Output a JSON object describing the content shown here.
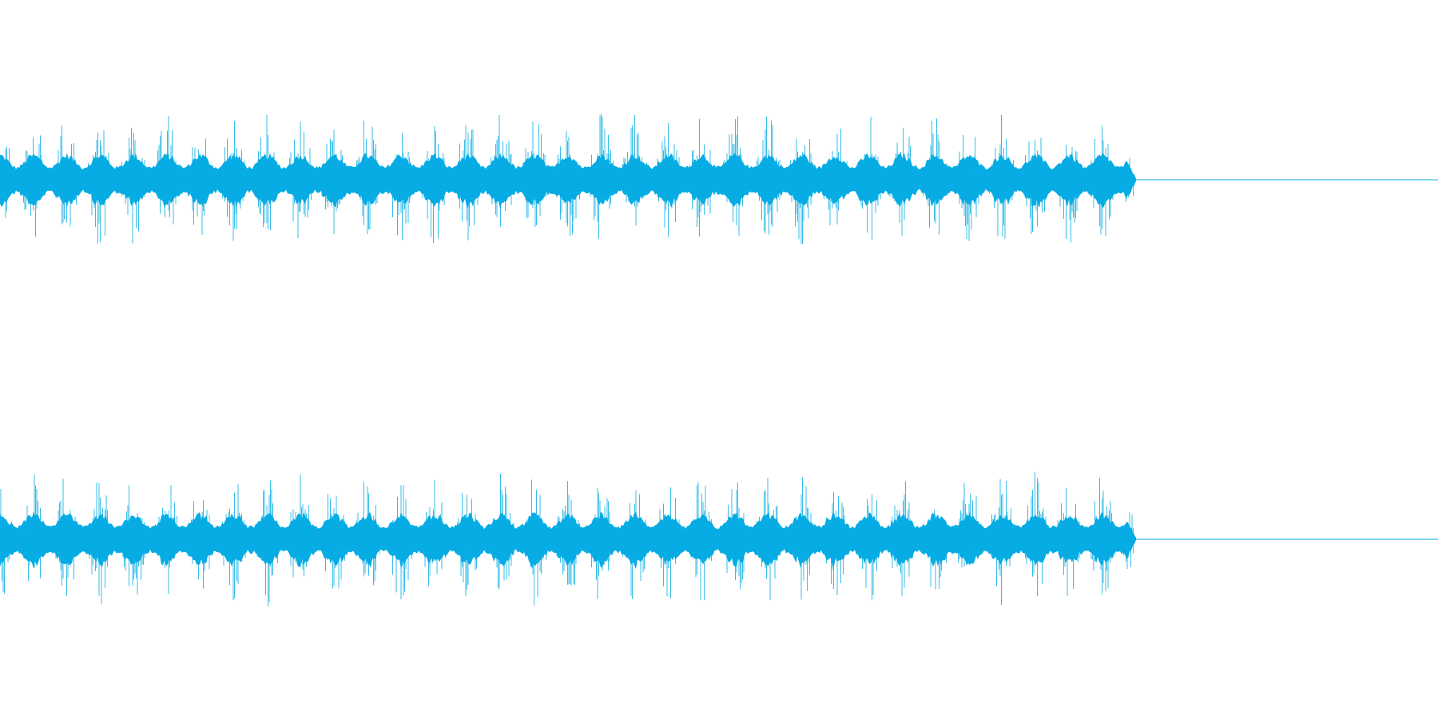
{
  "waveform": {
    "color": "#06ace3",
    "background": "#ffffff",
    "channels": [
      "left",
      "right"
    ],
    "audio_fraction_of_width": 0.79,
    "pulse_count": 34,
    "peak_amplitude": 0.85,
    "body_amplitude": 0.3
  }
}
